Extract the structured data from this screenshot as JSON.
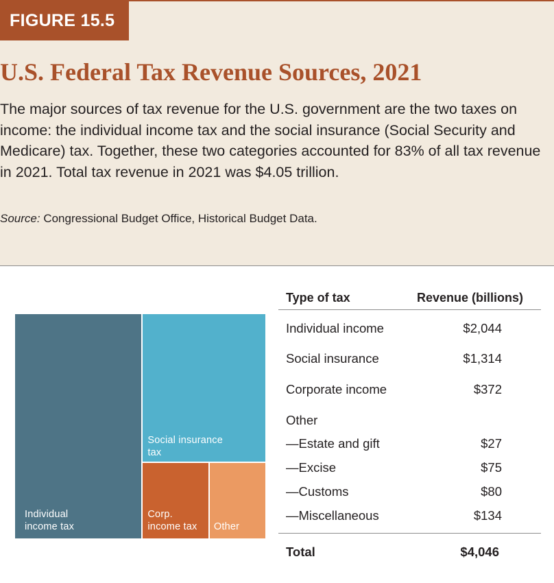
{
  "figure": {
    "label": "FIGURE 15.5",
    "title": "U.S. Federal Tax Revenue Sources, 2021",
    "caption": "The major sources of tax revenue for the U.S. government are the two taxes on income: the individual income tax and the social insurance (Social Security and Medicare) tax. Together, these two categories accounted for 83% of all tax revenue in 2021. Total tax revenue in 2021 was $4.05 trillion.",
    "source_prefix": "Source:",
    "source_text": " Congressional Budget Office, Historical Budget Data."
  },
  "colors": {
    "accent": "#a9512a",
    "panel_bg": "#f2eade",
    "individual": "#4e7486",
    "social": "#52b1cc",
    "corporate": "#c9622f",
    "other": "#eb9a62"
  },
  "table": {
    "header_type": "Type of tax",
    "header_revenue": "Revenue (billions)",
    "rows": [
      {
        "name": "Individual income",
        "value": "$2,044"
      },
      {
        "name": "Social insurance",
        "value": "$1,314"
      },
      {
        "name": "Corporate income",
        "value": "$372"
      },
      {
        "name": "Other",
        "value": ""
      },
      {
        "name": "—Estate and gift",
        "value": "$27"
      },
      {
        "name": "—Excise",
        "value": "$75"
      },
      {
        "name": "—Customs",
        "value": "$80"
      },
      {
        "name": "—Miscellaneous",
        "value": "$134"
      }
    ],
    "total_label": "Total",
    "total_value": "$4,046"
  },
  "chart_data": {
    "type": "treemap",
    "unit": "billions of dollars",
    "items": [
      {
        "label": "Individual income tax",
        "label_lines": [
          "Individual",
          "income tax"
        ],
        "value": 2044,
        "color": "#4e7486"
      },
      {
        "label": "Social insurance tax",
        "label_lines": [
          "Social insurance",
          "tax"
        ],
        "value": 1314,
        "color": "#52b1cc"
      },
      {
        "label": "Corp. income tax",
        "label_lines": [
          "Corp.",
          "income tax"
        ],
        "value": 372,
        "color": "#c9622f"
      },
      {
        "label": "Other",
        "label_lines": [
          "Other"
        ],
        "value": 316,
        "color": "#eb9a62"
      }
    ],
    "total": 4046
  }
}
